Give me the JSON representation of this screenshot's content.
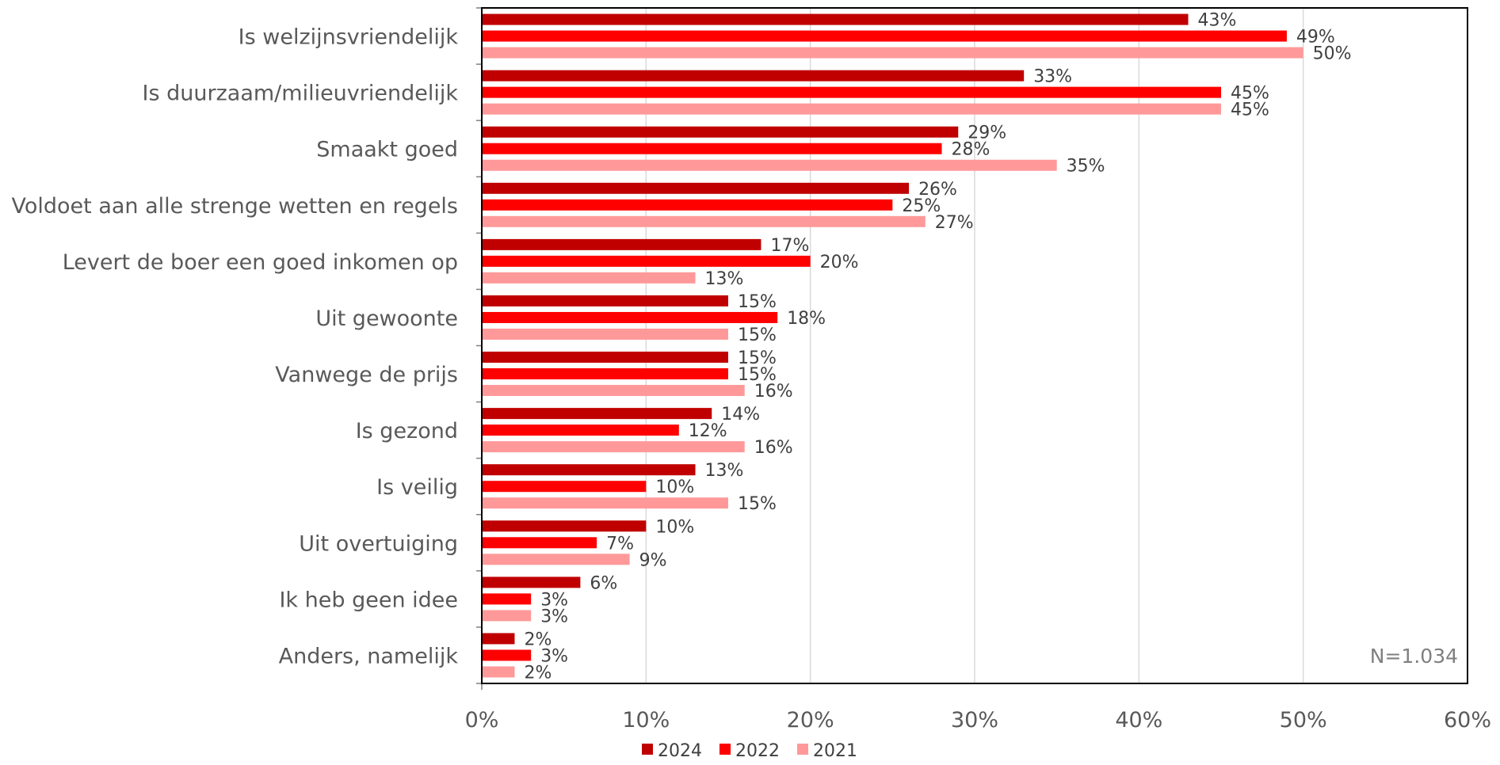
{
  "chart_data": {
    "type": "bar",
    "orientation": "horizontal",
    "categories": [
      "Is welzijnsvriendelijk",
      "Is duurzaam/milieuvriendelijk",
      "Smaakt goed",
      "Voldoet aan alle strenge wetten en regels",
      "Levert de boer een goed inkomen op",
      "Uit gewoonte",
      "Vanwege de prijs",
      "Is gezond",
      "Is veilig",
      "Uit overtuiging",
      "Ik heb geen idee",
      "Anders, namelijk"
    ],
    "series": [
      {
        "name": "2024",
        "color": "#C00000",
        "values": [
          43,
          33,
          29,
          26,
          17,
          15,
          15,
          14,
          13,
          10,
          6,
          2
        ],
        "labels": [
          "43%",
          "33%",
          "29%",
          "26%",
          "17%",
          "15%",
          "15%",
          "14%",
          "13%",
          "10%",
          "6%",
          "2%"
        ]
      },
      {
        "name": "2022",
        "color": "#FF0000",
        "values": [
          49,
          45,
          28,
          25,
          20,
          18,
          15,
          12,
          10,
          7,
          3,
          3
        ],
        "labels": [
          "49%",
          "45%",
          "28%",
          "25%",
          "20%",
          "18%",
          "15%",
          "12%",
          "10%",
          "7%",
          "3%",
          "3%"
        ]
      },
      {
        "name": "2021",
        "color": "#FF9999",
        "values": [
          50,
          45,
          35,
          27,
          13,
          15,
          16,
          16,
          15,
          9,
          3,
          2
        ],
        "labels": [
          "50%",
          "45%",
          "35%",
          "27%",
          "13%",
          "15%",
          "16%",
          "16%",
          "15%",
          "9%",
          "3%",
          "2%"
        ]
      }
    ],
    "xlim": [
      0,
      60
    ],
    "xticks": [
      0,
      10,
      20,
      30,
      40,
      50,
      60
    ],
    "xtick_labels": [
      "0%",
      "10%",
      "20%",
      "30%",
      "40%",
      "50%",
      "60%"
    ],
    "grid": true,
    "legend_position": "bottom",
    "annotation": "N=1.034"
  }
}
